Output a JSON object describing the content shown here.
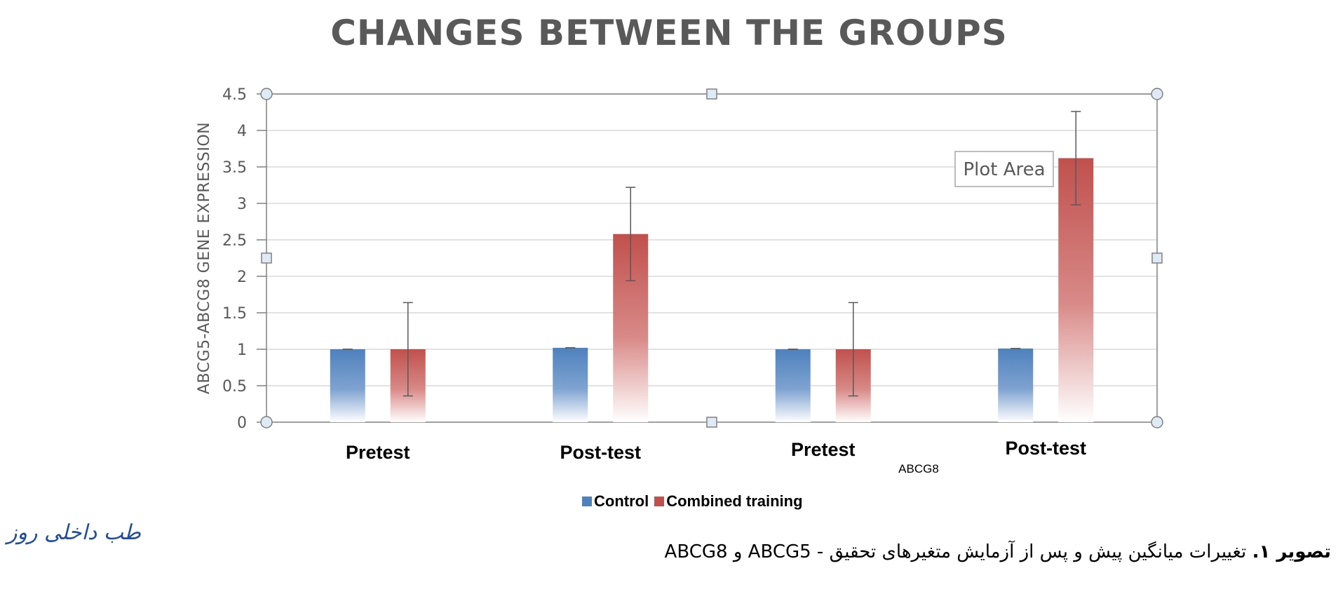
{
  "chart_data": {
    "type": "bar",
    "title": "CHANGES BETWEEN THE GROUPS",
    "ylabel": "ABCG5-ABCG8 GENE EXPRESSION",
    "ylim": [
      0,
      4.5
    ],
    "yticks": [
      "0",
      "0.5",
      "1",
      "1.5",
      "2",
      "2.5",
      "3",
      "3.5",
      "4",
      "4.5"
    ],
    "categories": [
      "Pretest",
      "Post-test",
      "Pretest",
      "Post-test"
    ],
    "group_label": "ABCG8",
    "series": [
      {
        "name": "Control",
        "color": "#4f81bd",
        "values": [
          1.0,
          1.02,
          1.0,
          1.01
        ],
        "error": [
          0.0,
          0.0,
          0.0,
          0.0
        ]
      },
      {
        "name": "Combined training",
        "color": "#c0504d",
        "values": [
          1.0,
          2.58,
          1.0,
          3.62
        ],
        "error": [
          0.64,
          0.64,
          0.64,
          0.64
        ]
      }
    ],
    "tooltip": "Plot Area",
    "grid": true,
    "legend_position": "bottom"
  },
  "caption": {
    "label": "تصویر ۱.",
    "text": " تغییرات میانگین پیش و پس از آزمایش متغیرهای تحقیق - ABCG5 و ABCG8"
  },
  "logo_text": "طب داخلی روز"
}
